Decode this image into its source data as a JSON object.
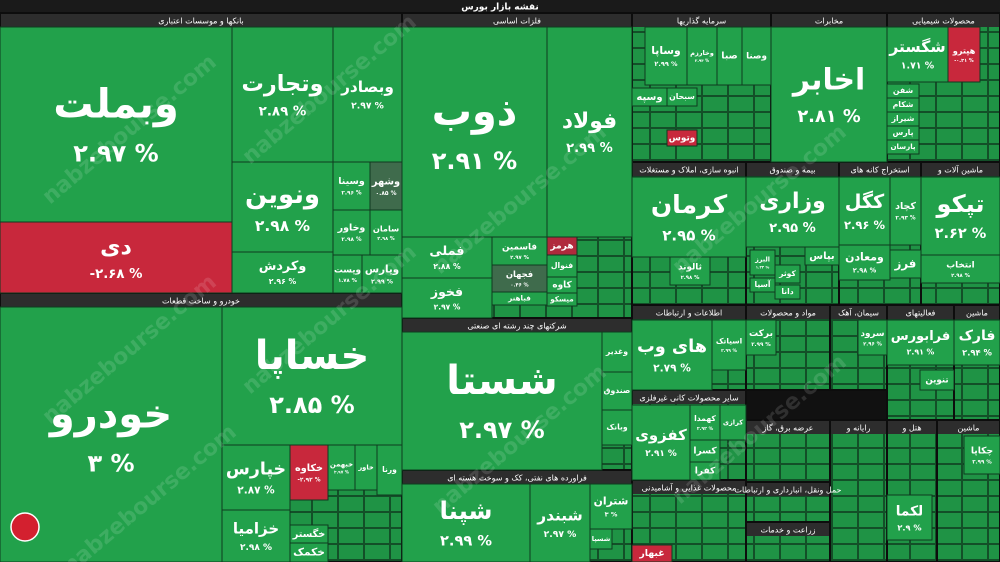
{
  "header": {
    "title": "نقشه بازار بورس"
  },
  "watermark": "nabzebourse.com",
  "tile_color": "#22a14b",
  "sectors": [
    {
      "title": "بانکها و موسسات اعتباری",
      "tiles": [
        {
          "name": "وبملت",
          "change": "۲.۹۷ %"
        },
        {
          "name": "دی",
          "change": "-۲.۶۸ %",
          "color": "#c8283c"
        },
        {
          "name": "وتجارت",
          "change": "۲.۸۹ %"
        },
        {
          "name": "وبصادر",
          "change": "۲.۹۷ %"
        },
        {
          "name": "ونوین",
          "change": "۲.۹۸ %"
        },
        {
          "name": "وکردش",
          "change": "۲.۹۶ %"
        },
        {
          "name": "وسینا",
          "change": "۲.۹۶ %"
        },
        {
          "name": "وشهر",
          "change": "۰.۸۵ %",
          "color": "#3f6b4c"
        },
        {
          "name": "وخاور",
          "change": "۲.۹۸ %"
        },
        {
          "name": "سامان",
          "change": "۲.۹۸ %"
        },
        {
          "name": "وپست",
          "change": "۱.۷۸ %"
        },
        {
          "name": "وپارس",
          "change": "۲.۹۹ %"
        }
      ]
    },
    {
      "title": "خودرو و ساخت قطعات",
      "tiles": [
        {
          "name": "خودرو",
          "change": "۳ %"
        },
        {
          "name": "خساپا",
          "change": "۲.۸۵ %"
        },
        {
          "name": "خپارس",
          "change": "۲.۸۷ %"
        },
        {
          "name": "خزامیا",
          "change": "۲.۹۸ %"
        },
        {
          "name": "خکاوه",
          "change": "-۲.۹۲ %",
          "color": "#c8283c"
        },
        {
          "name": "خبهمن",
          "change": "۲.۹۷ %"
        },
        {
          "name": "خاور"
        },
        {
          "name": "ورنا"
        },
        {
          "name": "خگستر"
        },
        {
          "name": "خکمک"
        }
      ]
    },
    {
      "title": "فلزات اساسی",
      "tiles": [
        {
          "name": "ذوب",
          "change": "۲.۹۱ %"
        },
        {
          "name": "فولاد",
          "change": "۲.۹۹ %"
        },
        {
          "name": "فملی",
          "change": "۲.۸۸ %"
        },
        {
          "name": "فخوز",
          "change": "۲.۹۷ %"
        },
        {
          "name": "فاسمین",
          "change": "۲.۹۷ %"
        },
        {
          "name": "فجهان",
          "change": "۰.۴۶ %",
          "color": "#3f6b4c"
        },
        {
          "name": "هرمز",
          "color": "#b02a3c"
        },
        {
          "name": "فنوال"
        },
        {
          "name": "کاوه"
        },
        {
          "name": "میسکو"
        },
        {
          "name": "فباهنر"
        }
      ]
    },
    {
      "title": "شرکتهای چند رشته ای صنعتی",
      "tiles": [
        {
          "name": "شستا",
          "change": "۲.۹۷ %"
        },
        {
          "name": "وغدیر"
        },
        {
          "name": "صندوق"
        },
        {
          "name": "وبانک"
        }
      ]
    },
    {
      "title": "فراورده های نفتی، کک و سوخت هسته ای",
      "tiles": [
        {
          "name": "شپنا",
          "change": "۲.۹۹ %"
        },
        {
          "name": "شبندر",
          "change": "۲.۹۷ %"
        },
        {
          "name": "شتران",
          "change": "۳ %"
        },
        {
          "name": "شسپا"
        }
      ]
    },
    {
      "title": "سرمایه گذاریها",
      "tiles": [
        {
          "name": "وساپا",
          "change": "۲.۹۹ %"
        },
        {
          "name": "وخارزم",
          "change": "۲.۹۴ %"
        },
        {
          "name": "صبا"
        },
        {
          "name": "وصنا"
        },
        {
          "name": "وسپه"
        },
        {
          "name": "سبحان"
        },
        {
          "name": "وتوس",
          "color": "#c8283c"
        }
      ]
    },
    {
      "title": "مخابرات",
      "tiles": [
        {
          "name": "اخابر",
          "change": "۲.۸۱ %"
        }
      ]
    },
    {
      "title": "محصولات شیمیایی",
      "tiles": [
        {
          "name": "شگستر",
          "change": "۱.۷۱ %"
        },
        {
          "name": "هپترو",
          "change": "-۰.۴۱ %",
          "color": "#c8283c"
        },
        {
          "name": "شفن"
        },
        {
          "name": "شکام"
        },
        {
          "name": "شیراز"
        },
        {
          "name": "پارس"
        },
        {
          "name": "پارسان"
        }
      ]
    },
    {
      "title": "انبوه سازی، املاک و مستغلات",
      "tiles": [
        {
          "name": "کرمان",
          "change": "۲.۹۵ %"
        },
        {
          "name": "ثالوند",
          "change": "۲.۹۸ %"
        }
      ]
    },
    {
      "title": "بیمه و صندوق",
      "tiles": [
        {
          "name": "وزاری",
          "change": "۲.۹۵ %"
        },
        {
          "name": "البرز",
          "change": "۱.۴۳ %"
        },
        {
          "name": "بپاس"
        },
        {
          "name": "کوثر"
        },
        {
          "name": "آسیا"
        },
        {
          "name": "دانا"
        }
      ]
    },
    {
      "title": "استخراج کانه های",
      "tiles": [
        {
          "name": "کگل",
          "change": "۲.۹۶ %"
        },
        {
          "name": "کچاد",
          "change": "۲.۹۳ %"
        },
        {
          "name": "ومعادن",
          "change": "۲.۹۸ %"
        },
        {
          "name": "فرز"
        }
      ]
    },
    {
      "title": "ماشین آلات و",
      "tiles": [
        {
          "name": "تپکو",
          "change": "۲.۶۲ %"
        },
        {
          "name": "انتخاب",
          "change": "۲.۹۸ %"
        }
      ]
    },
    {
      "title": "اطلاعات و ارتباطات",
      "tiles": [
        {
          "name": "های وب",
          "change": "۲.۷۹ %"
        },
        {
          "name": "اسیاتک",
          "change": "۲.۹۹ %"
        }
      ]
    },
    {
      "title": "مواد و محصولات",
      "tiles": [
        {
          "name": "برکت",
          "change": "۲.۹۹ %"
        }
      ]
    },
    {
      "title": "سیمان، آهک",
      "tiles": [
        {
          "name": "سرود",
          "change": "۲.۹۶ %"
        }
      ]
    },
    {
      "title": "فعالیتهای",
      "tiles": [
        {
          "name": "فرابورس",
          "change": "۲.۹۱ %"
        },
        {
          "name": "تنوین"
        }
      ]
    },
    {
      "title": "ماشین",
      "tiles": [
        {
          "name": "فارک",
          "change": "۲.۹۴ %"
        }
      ]
    },
    {
      "title": "سایر محصولات کانی غیرفلزی",
      "tiles": [
        {
          "name": "کفزوی",
          "change": "۲.۹۱ %"
        },
        {
          "name": "کهمدا",
          "change": "۲.۹۲ %"
        },
        {
          "name": "کرازی"
        },
        {
          "name": "کسرا"
        },
        {
          "name": "کفرا"
        }
      ]
    },
    {
      "title": "محصولات غذایی و آشامیدنی",
      "tiles": [
        {
          "name": "غبهار",
          "color": "#c8283c"
        }
      ]
    },
    {
      "title": "عرضه برق، گاز",
      "tiles": []
    },
    {
      "title": "حمل ونقل، انبارداری و ارتباطات",
      "tiles": []
    },
    {
      "title": "زراعت و خدمات",
      "tiles": []
    },
    {
      "title": "رایانه و",
      "tiles": []
    },
    {
      "title": "هتل و",
      "tiles": [
        {
          "name": "لکما",
          "change": "۲.۹ %"
        }
      ]
    },
    {
      "title": "ماشین",
      "tiles": [
        {
          "name": "چکاپا",
          "change": "۲.۹۹ %"
        }
      ]
    }
  ]
}
